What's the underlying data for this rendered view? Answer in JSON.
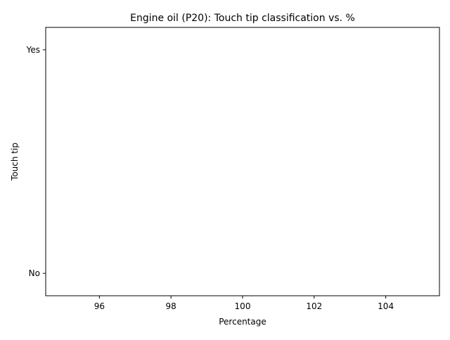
{
  "chart_data": {
    "type": "scatter",
    "title": "Engine oil (P20): Touch tip classification vs. %",
    "xlabel": "Percentage",
    "ylabel": "Touch tip",
    "xlim": [
      94.5,
      105.5
    ],
    "x_ticks": [
      96,
      98,
      100,
      102,
      104
    ],
    "y_categories": [
      "No",
      "Yes"
    ],
    "ylim": [
      -0.1,
      1.1
    ],
    "series": [
      {
        "x": [],
        "y": []
      }
    ],
    "grid": false,
    "legend": "none"
  }
}
